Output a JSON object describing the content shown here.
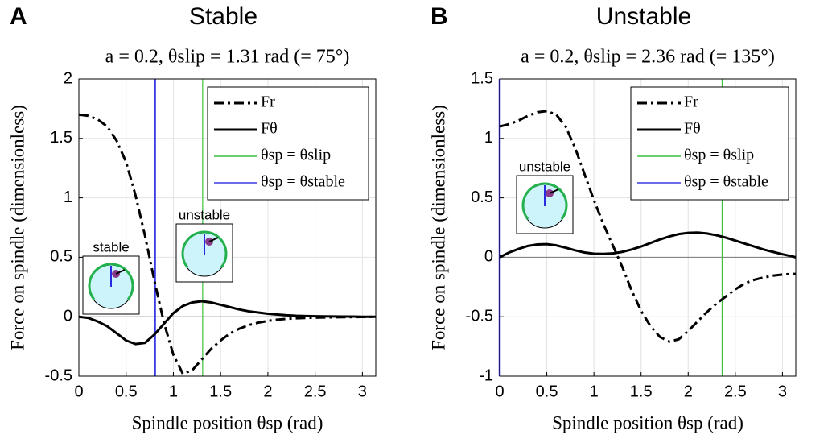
{
  "chart_data": [
    {
      "type": "line",
      "panel": "A",
      "title": "Stable",
      "subtitle": "a = 0.2, θslip = 1.31 rad (= 75°)",
      "xlabel": "Spindle position θsp (rad)",
      "ylabel": "Force on spindle (dimensionless)",
      "x": [
        0,
        0.1,
        0.2,
        0.3,
        0.4,
        0.5,
        0.6,
        0.7,
        0.8,
        0.9,
        1.0,
        1.1,
        1.2,
        1.3,
        1.4,
        1.5,
        1.6,
        1.7,
        1.8,
        1.9,
        2.0,
        2.1,
        2.2,
        2.3,
        2.4,
        2.5,
        2.6,
        2.7,
        2.8,
        2.9,
        3.0,
        3.1,
        3.1416
      ],
      "series": [
        {
          "name": "Fr",
          "color": "#000000",
          "linestyle": "dashdot",
          "values": [
            1.7,
            1.69,
            1.66,
            1.6,
            1.48,
            1.3,
            1.02,
            0.68,
            0.3,
            -0.05,
            -0.32,
            -0.48,
            -0.45,
            -0.36,
            -0.27,
            -0.2,
            -0.14,
            -0.1,
            -0.07,
            -0.05,
            -0.035,
            -0.025,
            -0.018,
            -0.013,
            -0.01,
            -0.008,
            -0.006,
            -0.005,
            -0.004,
            -0.003,
            -0.002,
            -0.001,
            0
          ]
        },
        {
          "name": "Fθ",
          "color": "#000000",
          "linestyle": "solid",
          "values": [
            0,
            -0.01,
            -0.04,
            -0.08,
            -0.14,
            -0.2,
            -0.23,
            -0.22,
            -0.15,
            -0.06,
            0.03,
            0.09,
            0.12,
            0.13,
            0.12,
            0.1,
            0.08,
            0.06,
            0.045,
            0.035,
            0.025,
            0.018,
            0.012,
            0.008,
            0.006,
            0.004,
            0.003,
            0.002,
            0.001,
            0.001,
            0,
            0,
            0
          ]
        }
      ],
      "reference_lines": [
        {
          "name": "θsp = θslip",
          "color": "#3cc23c",
          "x": 1.31
        },
        {
          "name": "θsp = θstable",
          "color": "#3a3ae6",
          "x": 0.805
        }
      ],
      "annotations": [
        "stable",
        "unstable"
      ],
      "xlim": [
        0,
        3.1416
      ],
      "xticks": [
        0,
        0.5,
        1,
        1.5,
        2,
        2.5,
        3
      ],
      "ylim": [
        -0.5,
        2
      ],
      "yticks": [
        -0.5,
        0,
        0.5,
        1,
        1.5,
        2
      ],
      "grid": true,
      "legend": "northeast"
    },
    {
      "type": "line",
      "panel": "B",
      "title": "Unstable",
      "subtitle": "a = 0.2, θslip = 2.36 rad (= 135°)",
      "xlabel": "Spindle position θsp (rad)",
      "ylabel": "Force on spindle (dimensionless)",
      "x": [
        0,
        0.1,
        0.2,
        0.3,
        0.4,
        0.5,
        0.6,
        0.7,
        0.8,
        0.9,
        1.0,
        1.1,
        1.2,
        1.3,
        1.4,
        1.5,
        1.6,
        1.7,
        1.8,
        1.9,
        2.0,
        2.1,
        2.2,
        2.3,
        2.4,
        2.5,
        2.6,
        2.7,
        2.8,
        2.9,
        3.0,
        3.1,
        3.1416
      ],
      "series": [
        {
          "name": "Fr",
          "color": "#000000",
          "linestyle": "dashdot",
          "values": [
            1.1,
            1.12,
            1.15,
            1.19,
            1.22,
            1.23,
            1.2,
            1.1,
            0.92,
            0.7,
            0.48,
            0.28,
            0.1,
            -0.08,
            -0.28,
            -0.45,
            -0.58,
            -0.67,
            -0.71,
            -0.69,
            -0.62,
            -0.54,
            -0.46,
            -0.39,
            -0.33,
            -0.27,
            -0.22,
            -0.19,
            -0.17,
            -0.155,
            -0.145,
            -0.14,
            -0.14
          ]
        },
        {
          "name": "Fθ",
          "color": "#000000",
          "linestyle": "solid",
          "values": [
            0,
            0.04,
            0.07,
            0.095,
            0.108,
            0.11,
            0.1,
            0.08,
            0.058,
            0.04,
            0.03,
            0.028,
            0.032,
            0.045,
            0.065,
            0.09,
            0.12,
            0.15,
            0.175,
            0.195,
            0.205,
            0.208,
            0.2,
            0.185,
            0.165,
            0.14,
            0.115,
            0.09,
            0.065,
            0.045,
            0.025,
            0.008,
            0
          ]
        }
      ],
      "reference_lines": [
        {
          "name": "θsp = θslip",
          "color": "#3cc23c",
          "x": 2.36
        },
        {
          "name": "θsp = θstable",
          "color": "#3a3ae6",
          "x": 0
        }
      ],
      "annotations": [
        "unstable"
      ],
      "xlim": [
        0,
        3.1416
      ],
      "xticks": [
        0,
        0.5,
        1,
        1.5,
        2,
        2.5,
        3
      ],
      "ylim": [
        -1,
        1.5
      ],
      "yticks": [
        -1,
        -0.5,
        0,
        0.5,
        1,
        1.5
      ],
      "grid": true,
      "legend": "northeast"
    }
  ]
}
